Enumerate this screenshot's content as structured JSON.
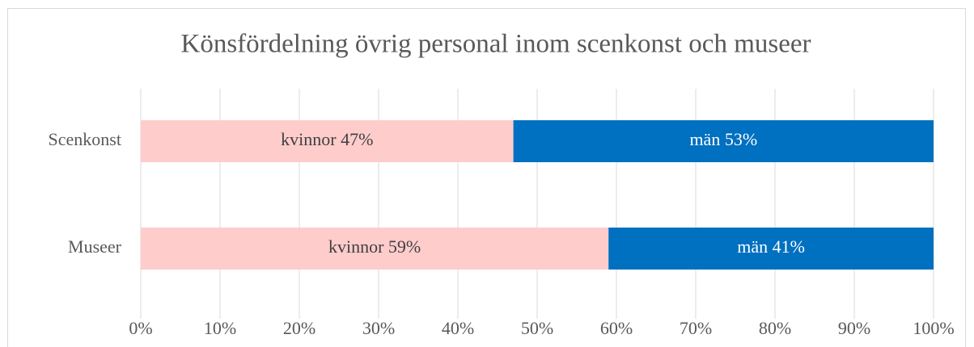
{
  "chart_data": {
    "type": "stacked_barh",
    "title": "Könsfördelning övrig personal inom scenkonst och museer",
    "categories": [
      "Scenkonst",
      "Museer"
    ],
    "series": [
      {
        "color": "#ffcccc",
        "values": [
          47,
          59
        ],
        "value_labels": [
          "kvinnor 47%",
          "kvinnor 59%"
        ]
      },
      {
        "color": "#0070c0",
        "values": [
          53,
          41
        ],
        "value_labels": [
          "män 53%",
          "män 41%"
        ]
      }
    ],
    "xlim": [
      0,
      100
    ],
    "xticks": [
      {
        "value": 0,
        "label": "0%"
      },
      {
        "value": 10,
        "label": "10%"
      },
      {
        "value": 20,
        "label": "20%"
      },
      {
        "value": 30,
        "label": "30%"
      },
      {
        "value": 40,
        "label": "40%"
      },
      {
        "value": 50,
        "label": "50%"
      },
      {
        "value": 60,
        "label": "60%"
      },
      {
        "value": 70,
        "label": "70%"
      },
      {
        "value": 80,
        "label": "80%"
      },
      {
        "value": 90,
        "label": "90%"
      },
      {
        "value": 100,
        "label": "100%"
      }
    ],
    "grid": true
  }
}
